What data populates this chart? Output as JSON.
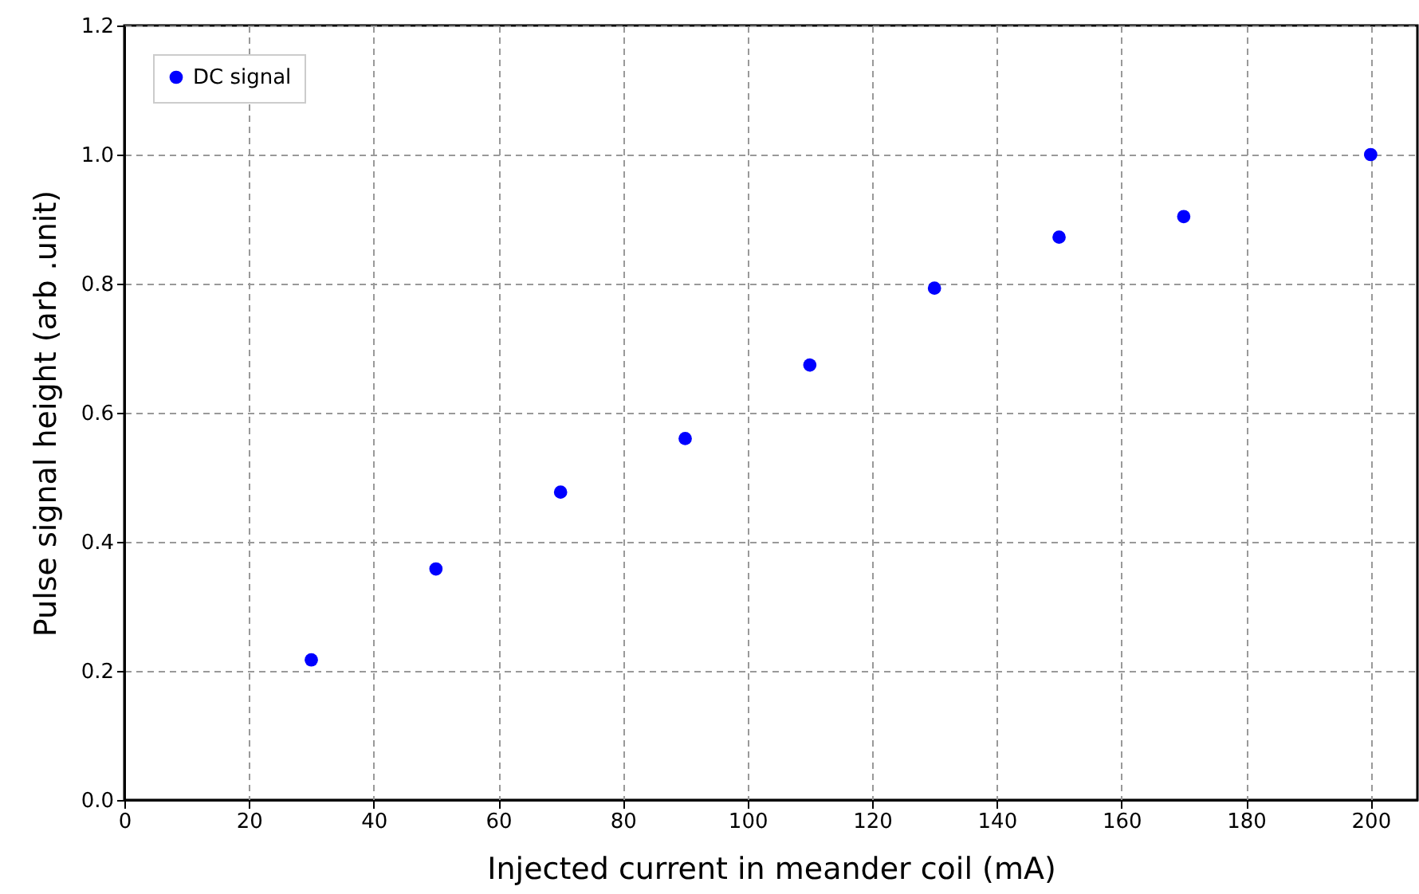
{
  "chart_data": {
    "type": "scatter",
    "xlabel": "Injected current in meander coil (mA)",
    "ylabel": "Pulse signal height (arb .unit)",
    "x": [
      30,
      50,
      70,
      90,
      110,
      130,
      150,
      170,
      200
    ],
    "series": [
      {
        "name": "DC signal",
        "color": "#0000ff",
        "values": [
          0.217,
          0.358,
          0.477,
          0.56,
          0.674,
          0.793,
          0.872,
          0.904,
          1.0
        ]
      }
    ],
    "xlim": [
      0,
      207.5
    ],
    "xticks": [
      0,
      20,
      40,
      60,
      80,
      100,
      120,
      140,
      160,
      180,
      200
    ],
    "ylim": [
      0,
      1.2
    ],
    "yticks": [
      {
        "value": 0,
        "label": "0.0"
      },
      0.2,
      0.4,
      0.6,
      0.8,
      {
        "value": 1,
        "label": "1.0"
      },
      1.2
    ],
    "grid": true,
    "line_style": "dashed",
    "legend": "top left",
    "marker": "circle"
  }
}
